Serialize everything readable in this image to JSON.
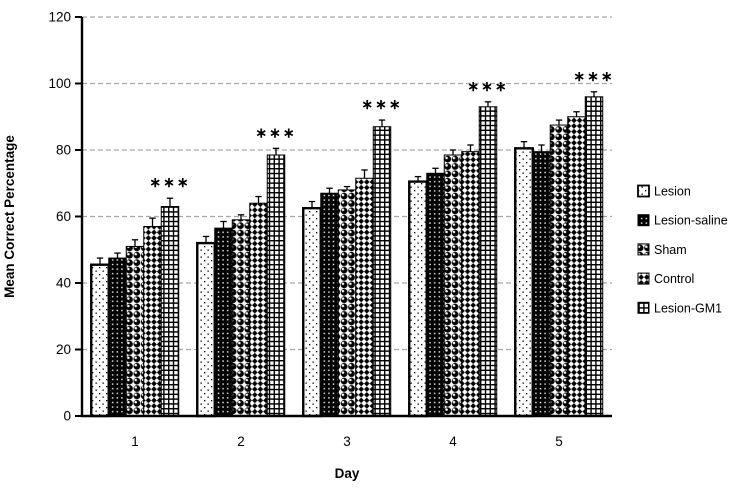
{
  "colors": {
    "foreground": "#000000",
    "background": "#ffffff",
    "gridline": "#a6a6a6",
    "axis": "#000000"
  },
  "chart_data": {
    "type": "bar",
    "title": "",
    "xlabel": "Day",
    "ylabel": "Mean Correct Percentage",
    "ylim": [
      0,
      120
    ],
    "ytick_step": 20,
    "grid": "horizontal-dashed",
    "legend_position": "right",
    "categories": [
      "1",
      "2",
      "3",
      "4",
      "5"
    ],
    "series": [
      {
        "name": "Lesion",
        "pattern": "lesion",
        "values": [
          45.5,
          52,
          62.5,
          70.5,
          80.5
        ],
        "errors": [
          2,
          2,
          2,
          1.5,
          2
        ]
      },
      {
        "name": "Lesion-saline",
        "pattern": "saline",
        "values": [
          47.5,
          56.5,
          67,
          73,
          79.5
        ],
        "errors": [
          1.5,
          2,
          1.5,
          1.5,
          2
        ]
      },
      {
        "name": "Sham",
        "pattern": "sham",
        "values": [
          51,
          59,
          68,
          78.5,
          87.5
        ],
        "errors": [
          2,
          1.5,
          1,
          1.5,
          1.5
        ]
      },
      {
        "name": "Control",
        "pattern": "control",
        "values": [
          57,
          64,
          71.5,
          79.5,
          90
        ],
        "errors": [
          2.5,
          2,
          2.5,
          2,
          1.5
        ]
      },
      {
        "name": "Lesion-GM1",
        "pattern": "gm1",
        "values": [
          63,
          78.5,
          87,
          93,
          96
        ],
        "errors": [
          2.5,
          2,
          2,
          1.5,
          1.5
        ]
      }
    ],
    "annotations": [
      {
        "category_index": 0,
        "series": "Lesion-GM1",
        "text": "∗∗∗"
      },
      {
        "category_index": 1,
        "series": "Lesion-GM1",
        "text": "∗∗∗"
      },
      {
        "category_index": 2,
        "series": "Lesion-GM1",
        "text": "∗∗∗"
      },
      {
        "category_index": 3,
        "series": "Lesion-GM1",
        "text": "∗∗∗"
      },
      {
        "category_index": 4,
        "series": "Lesion-GM1",
        "text": "∗∗∗"
      }
    ]
  }
}
